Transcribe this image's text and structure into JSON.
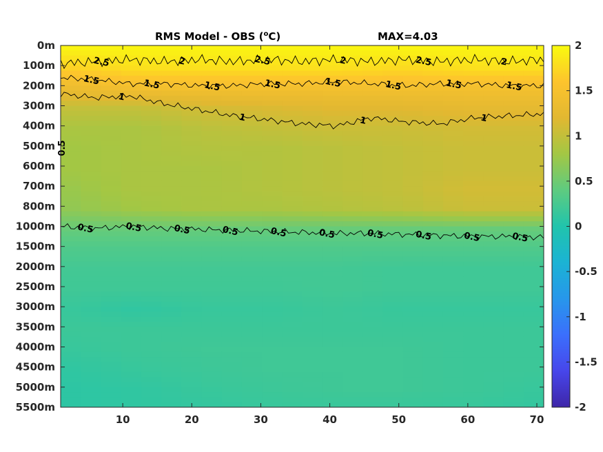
{
  "chart_data": {
    "type": "heatmap",
    "title": "RMS Model - OBS (",
    "title_unit": "o",
    "title_unit_suffix": "C)",
    "max_label": "MAX=4.03",
    "x_ticks": [
      "10",
      "20",
      "30",
      "40",
      "50",
      "60",
      "70"
    ],
    "x_tick_values": [
      10,
      20,
      30,
      40,
      50,
      60,
      70
    ],
    "xlim": [
      1,
      71
    ],
    "y_ticks": [
      "0m",
      "100m",
      "200m",
      "300m",
      "400m",
      "500m",
      "600m",
      "700m",
      "800m",
      "1000m",
      "1500m",
      "2000m",
      "2500m",
      "3000m",
      "3500m",
      "4000m",
      "4500m",
      "5000m",
      "5500m"
    ],
    "colorbar_ticks": [
      "2",
      "1.5",
      "1",
      "0.5",
      "0",
      "-0.5",
      "-1",
      "-1.5",
      "-2"
    ],
    "colorbar_values": [
      2,
      1.5,
      1,
      0.5,
      0,
      -0.5,
      -1,
      -1.5,
      -2
    ],
    "clim": [
      -2,
      2
    ],
    "colormap": "parula",
    "colormap_stops": [
      "#3e26a8",
      "#4746eb",
      "#3b6ffc",
      "#2797eb",
      "#1bb3d4",
      "#21c4ac",
      "#5ecb80",
      "#a3c744",
      "#e2b831",
      "#fdc42d",
      "#f9fb0e"
    ],
    "rows": [
      {
        "depth": "0m",
        "values": [
          1.95,
          1.95,
          1.95,
          1.95,
          1.95,
          1.95,
          1.95,
          1.95
        ]
      },
      {
        "depth": "100m",
        "values": [
          1.7,
          1.8,
          1.8,
          1.8,
          1.8,
          1.75,
          1.8,
          1.8
        ]
      },
      {
        "depth": "200m",
        "values": [
          1.35,
          1.45,
          1.45,
          1.45,
          1.45,
          1.45,
          1.45,
          1.45
        ]
      },
      {
        "depth": "300m",
        "values": [
          1.0,
          1.0,
          1.1,
          1.15,
          1.2,
          1.2,
          1.25,
          1.25
        ]
      },
      {
        "depth": "400m",
        "values": [
          0.85,
          0.85,
          0.95,
          1.0,
          1.05,
          1.05,
          1.1,
          1.1
        ]
      },
      {
        "depth": "500m",
        "values": [
          0.8,
          0.85,
          0.9,
          0.9,
          0.95,
          1.0,
          1.05,
          1.05
        ]
      },
      {
        "depth": "600m",
        "values": [
          0.8,
          0.85,
          0.85,
          0.9,
          0.95,
          1.0,
          1.05,
          1.05
        ]
      },
      {
        "depth": "700m",
        "values": [
          0.75,
          0.85,
          0.85,
          0.9,
          0.95,
          1.0,
          1.1,
          1.1
        ]
      },
      {
        "depth": "800m",
        "values": [
          0.7,
          0.8,
          0.85,
          0.85,
          0.9,
          0.95,
          1.05,
          1.05
        ]
      },
      {
        "depth": "1000m",
        "values": [
          0.45,
          0.45,
          0.45,
          0.45,
          0.45,
          0.45,
          0.45,
          0.45
        ]
      },
      {
        "depth": "1500m",
        "values": [
          0.3,
          0.3,
          0.3,
          0.3,
          0.3,
          0.3,
          0.3,
          0.3
        ]
      },
      {
        "depth": "2000m",
        "values": [
          0.22,
          0.22,
          0.22,
          0.22,
          0.22,
          0.2,
          0.2,
          0.2
        ]
      },
      {
        "depth": "2500m",
        "values": [
          0.2,
          0.2,
          0.2,
          0.2,
          0.22,
          0.2,
          0.2,
          0.2
        ]
      },
      {
        "depth": "3000m",
        "values": [
          0.15,
          0.1,
          0.15,
          0.15,
          0.18,
          0.15,
          0.15,
          0.15
        ]
      },
      {
        "depth": "3500m",
        "values": [
          0.18,
          0.18,
          0.18,
          0.18,
          0.18,
          0.18,
          0.18,
          0.18
        ]
      },
      {
        "depth": "4000m",
        "values": [
          0.15,
          0.18,
          0.2,
          0.2,
          0.2,
          0.2,
          0.18,
          0.18
        ]
      },
      {
        "depth": "4500m",
        "values": [
          0.1,
          0.15,
          0.18,
          0.2,
          0.2,
          0.2,
          0.18,
          0.18
        ]
      },
      {
        "depth": "5000m",
        "values": [
          0.08,
          0.1,
          0.15,
          0.18,
          0.2,
          0.2,
          0.18,
          0.15
        ]
      },
      {
        "depth": "5500m",
        "values": [
          0.08,
          0.1,
          0.12,
          0.15,
          0.15,
          0.15,
          0.15,
          0.12
        ]
      }
    ],
    "contours": [
      {
        "level": 0.5,
        "depth_index": [
          9.0,
          9.1,
          9.0,
          9.1,
          9.15,
          9.2,
          9.25,
          9.3,
          9.35,
          9.35,
          9.4,
          9.45,
          9.5,
          9.5,
          9.55
        ],
        "labels": [
          "0.5",
          "0.5",
          "0.5",
          "0.5",
          "0.5",
          "0.5",
          "0.5",
          "0.5",
          "0.5",
          "0.5"
        ]
      },
      {
        "level": 1,
        "depth_index": [
          2.4,
          2.6,
          2.5,
          2.9,
          3.2,
          3.5,
          3.7,
          3.9,
          4.0,
          3.6,
          3.8,
          3.9,
          3.6,
          3.5,
          3.4
        ],
        "labels": [
          "1",
          "1",
          "1",
          "1"
        ]
      },
      {
        "level": 1.5,
        "depth_index": [
          1.6,
          1.7,
          1.9,
          1.9,
          2.0,
          2.0,
          1.9,
          1.9,
          1.8,
          1.9,
          2.0,
          1.9,
          1.9,
          2.0,
          2.0
        ],
        "labels": [
          "1.5",
          "1.5",
          "1.5",
          "1.5",
          "1.5",
          "1.5",
          "1.5",
          "1.5"
        ]
      },
      {
        "level": 2,
        "depth_index": [
          0.9,
          0.8,
          0.7,
          0.8,
          0.7,
          0.8,
          0.7,
          0.8,
          0.7,
          0.8,
          0.7,
          0.8,
          0.7,
          0.8,
          0.7
        ],
        "labels": [
          "2.5",
          "2",
          "2.5",
          "2",
          "2.5",
          "2"
        ]
      }
    ],
    "side_label": "0.5",
    "grid": false,
    "legend": "none"
  }
}
